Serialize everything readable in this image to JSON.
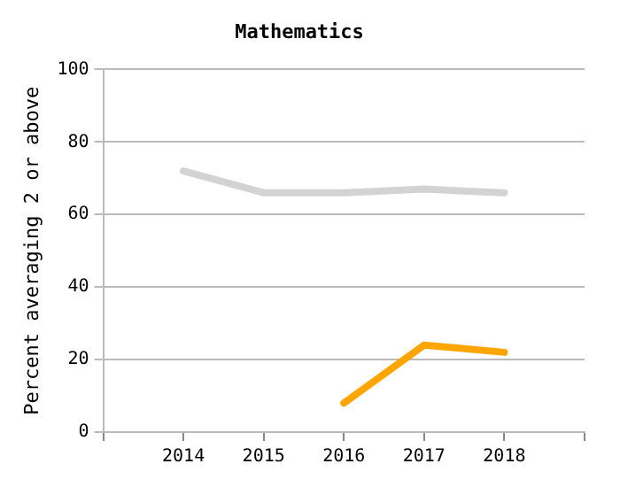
{
  "chart_data": {
    "type": "line",
    "title": "Mathematics",
    "ylabel": "Percent averaging 2 or above",
    "x": [
      2014,
      2015,
      2016,
      2017,
      2018
    ],
    "series": [
      {
        "color": "#d3d3d3",
        "values": [
          72,
          66,
          66,
          67,
          66
        ]
      },
      {
        "color": "#ffa500",
        "values": [
          null,
          null,
          8,
          24,
          22
        ]
      }
    ],
    "xlim": [
      2013,
      2019
    ],
    "xticks": [
      {
        "value": 2013,
        "label": null
      },
      2014,
      2015,
      2016,
      2017,
      2018,
      {
        "value": 2019,
        "label": null
      }
    ],
    "ylim": [
      0,
      100
    ],
    "yticks": [
      0,
      20,
      40,
      60,
      80,
      100
    ],
    "grid": "y",
    "legend": false,
    "marker": "none",
    "line_style": "solid"
  }
}
